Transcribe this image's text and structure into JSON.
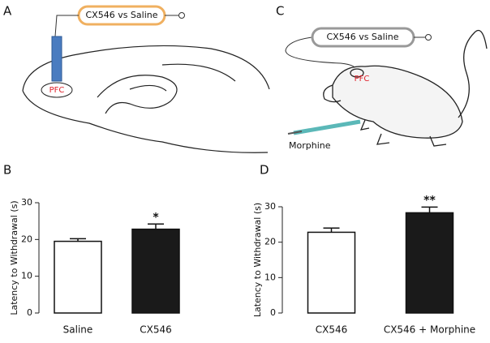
{
  "panels": {
    "a": "A",
    "b": "B",
    "c": "C",
    "d": "D"
  },
  "diagram_a": {
    "device_label": "CX546 vs Saline",
    "region_label": "PFC"
  },
  "diagram_c": {
    "device_label": "CX546 vs Saline",
    "region_label": "PFC",
    "injection_label": "Morphine"
  },
  "chart_data": [
    {
      "type": "bar",
      "ylabel": "Latency to Withdrawal (s)",
      "categories": [
        "Saline",
        "CX546"
      ],
      "values": [
        19.5,
        22.8
      ],
      "errors": [
        0.7,
        1.4
      ],
      "colors": [
        "#ffffff",
        "#1a1a1a"
      ],
      "significance": [
        null,
        "*"
      ],
      "ylim": [
        0,
        30
      ],
      "yticks": [
        0,
        10,
        20,
        30
      ]
    },
    {
      "type": "bar",
      "ylabel": "Latency to Withdrawal (s)",
      "categories": [
        "CX546",
        "CX546 + Morphine"
      ],
      "values": [
        22.8,
        28.3
      ],
      "errors": [
        1.2,
        1.6
      ],
      "colors": [
        "#ffffff",
        "#1a1a1a"
      ],
      "significance": [
        null,
        "**"
      ],
      "ylim": [
        0,
        30
      ],
      "yticks": [
        0,
        10,
        20,
        30
      ]
    }
  ]
}
